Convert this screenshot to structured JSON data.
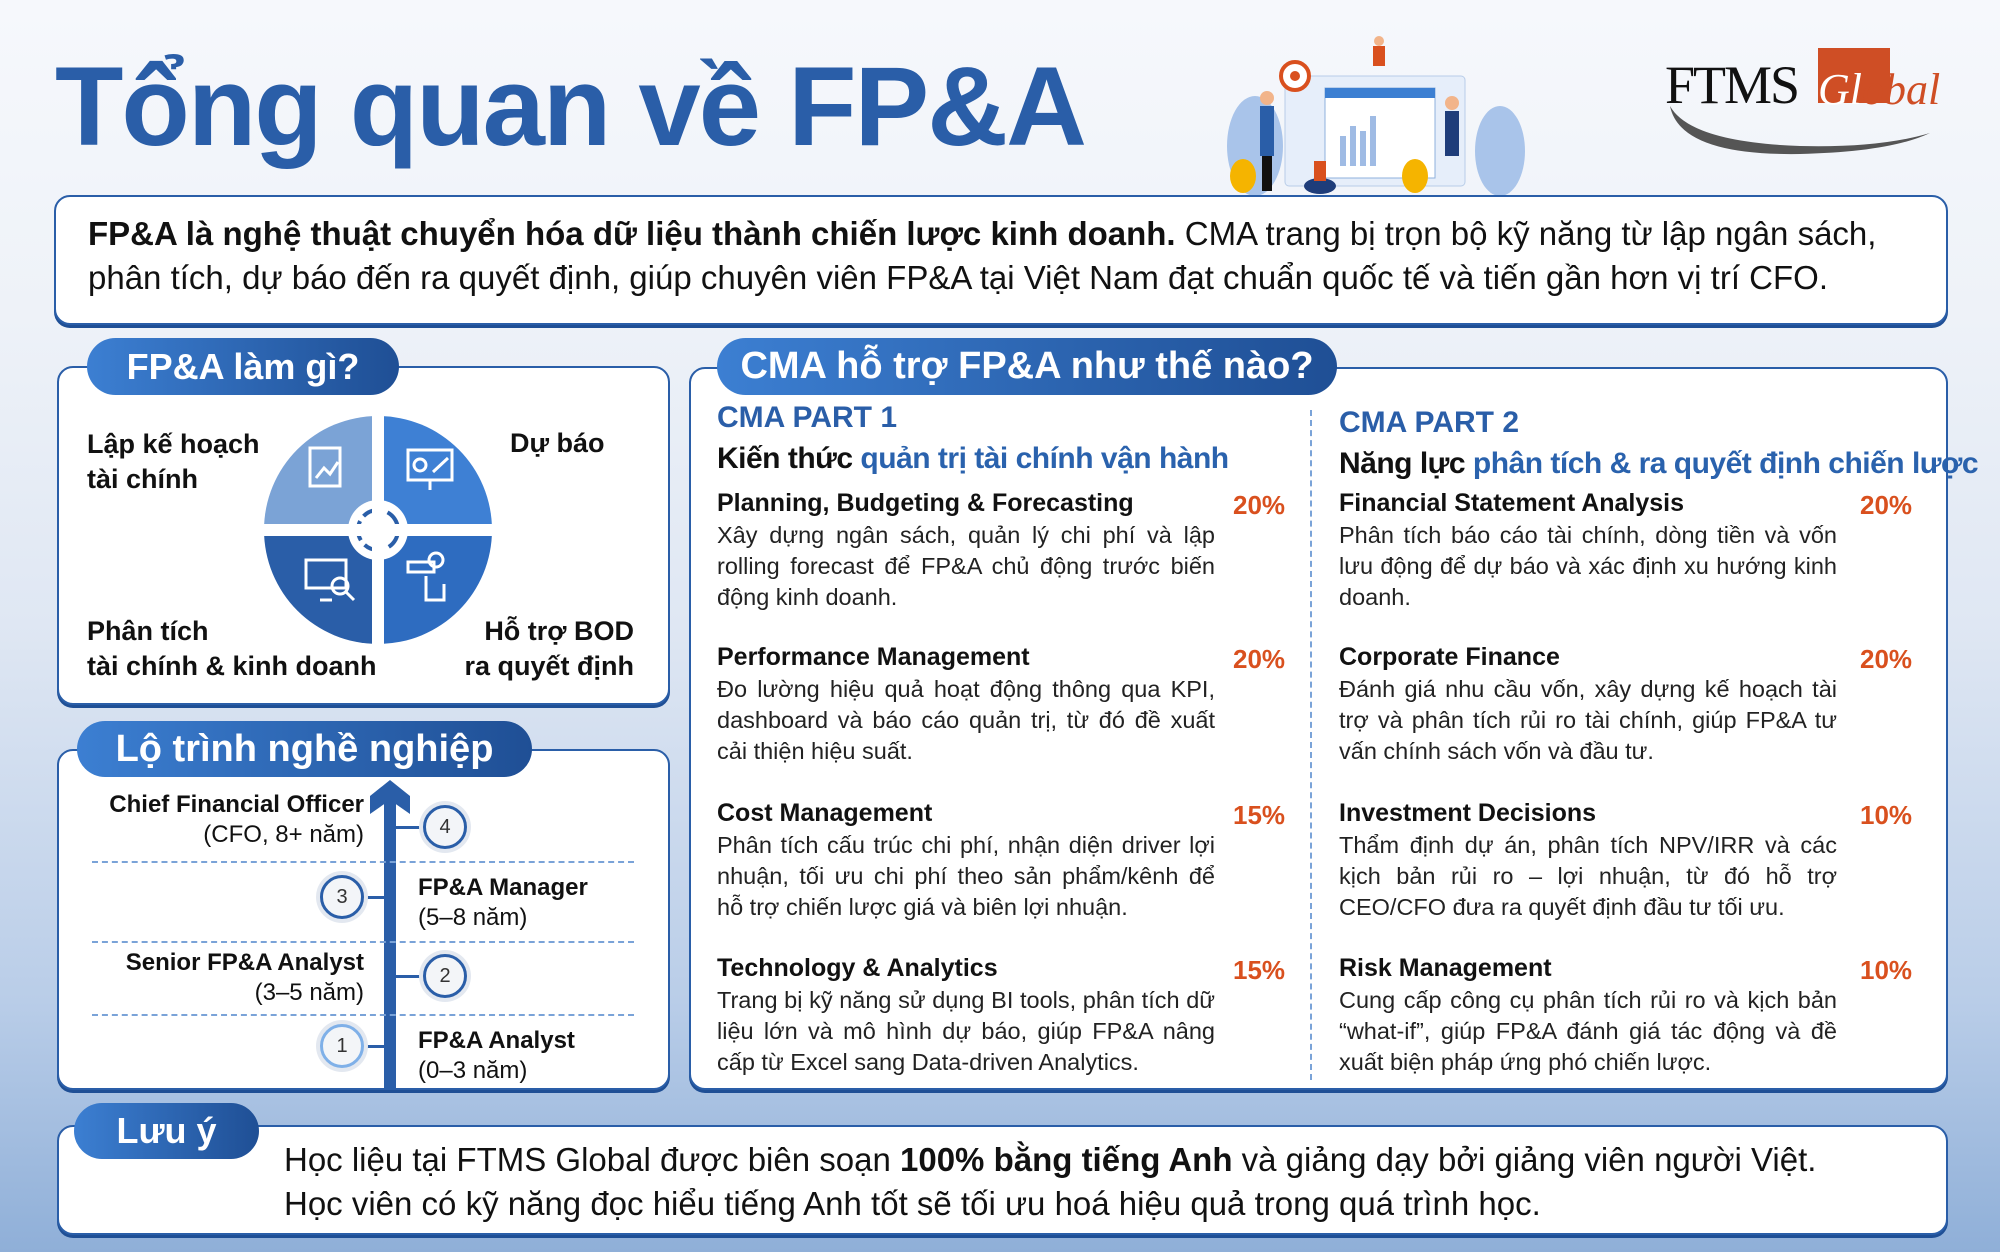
{
  "header": {
    "title": "Tổng quan về FP&A",
    "logo": {
      "brand": "FTMS",
      "suffix": "Global"
    }
  },
  "intro": {
    "bold": "FP&A là nghệ thuật chuyển hóa dữ liệu thành chiến lược kinh doanh.",
    "text": " CMA trang bị trọn bộ kỹ năng từ lập ngân sách, phân tích, dự báo đến ra quyết định, giúp chuyên viên FP&A tại Việt Nam đạt chuẩn quốc tế và tiến gần hơn vị trí CFO."
  },
  "what": {
    "title": "FP&A làm gì?",
    "quadrants": [
      {
        "line1": "Lập kế hoạch",
        "line2": "tài chính",
        "icon": "financial-plan-icon"
      },
      {
        "line1": "Dự báo",
        "line2": "",
        "icon": "forecast-presentation-icon"
      },
      {
        "line1": "Phân tích",
        "line2": "tài chính  & kinh doanh",
        "icon": "analytics-monitor-icon"
      },
      {
        "line1": "Hỗ trợ BOD",
        "line2": "ra quyết định",
        "icon": "decision-click-icon"
      }
    ]
  },
  "career": {
    "title": "Lộ trình nghề nghiệp",
    "steps": [
      {
        "num": "1",
        "role": "FP&A Analyst",
        "years": "(0–3 năm)"
      },
      {
        "num": "2",
        "role": "Senior FP&A Analyst",
        "years": "(3–5 năm)"
      },
      {
        "num": "3",
        "role": "FP&A Manager",
        "years": "(5–8 năm)"
      },
      {
        "num": "4",
        "role": "Chief Financial Officer",
        "years": "(CFO, 8+ năm)"
      }
    ]
  },
  "cma": {
    "title": "CMA hỗ trợ FP&A như thế nào?",
    "parts": [
      {
        "label": "CMA PART 1",
        "sub_plain": "Kiến thức ",
        "sub_highlight": "quản trị tài chính vận hành",
        "items": [
          {
            "title": "Planning, Budgeting & Forecasting",
            "pct": "20%",
            "body": "Xây dựng ngân sách, quản lý chi phí và lập rolling forecast để FP&A chủ động trước biến động kinh doanh."
          },
          {
            "title": "Performance Management",
            "pct": "20%",
            "body": "Đo lường hiệu quả hoạt động thông qua KPI, dashboard và báo cáo quản trị, từ đó đề xuất cải thiện hiệu suất."
          },
          {
            "title": "Cost Management",
            "pct": "15%",
            "body": "Phân tích cấu trúc chi phí, nhận diện driver lợi nhuận, tối ưu chi phí theo sản phẩm/kênh để hỗ trợ chiến lược giá và biên lợi nhuận."
          },
          {
            "title": "Technology & Analytics",
            "pct": "15%",
            "body": "Trang bị kỹ năng sử dụng BI tools, phân tích dữ liệu lớn và mô hình dự báo, giúp FP&A nâng cấp từ Excel sang Data-driven Analytics."
          }
        ]
      },
      {
        "label": "CMA PART 2",
        "sub_plain": "Năng lực ",
        "sub_highlight": "phân tích & ra quyết định chiến lược",
        "items": [
          {
            "title": "Financial Statement Analysis",
            "pct": "20%",
            "body": "Phân tích báo cáo tài chính, dòng tiền và vốn lưu động để dự báo và xác định xu hướng kinh doanh."
          },
          {
            "title": "Corporate Finance",
            "pct": "20%",
            "body": "Đánh giá nhu cầu vốn, xây dựng kế hoạch tài trợ và phân tích rủi ro tài chính, giúp FP&A tư vấn chính sách vốn và đầu tư."
          },
          {
            "title": "Investment Decisions",
            "pct": "10%",
            "body": "Thẩm định dự án, phân tích NPV/IRR và các kịch bản rủi ro – lợi nhuận, từ đó hỗ trợ CEO/CFO đưa ra quyết định đầu tư tối ưu."
          },
          {
            "title": "Risk Management",
            "pct": "10%",
            "body": "Cung cấp công cụ phân tích rủi ro và kịch bản “what-if”, giúp FP&A đánh giá tác động và đề xuất biện pháp ứng phó chiến lược."
          }
        ]
      }
    ]
  },
  "note": {
    "title": "Lưu ý",
    "line1_a": "Học liệu tại FTMS Global được biên soạn ",
    "line1_bold": "100% bằng tiếng Anh",
    "line1_b": " và giảng dạy bởi giảng viên người Việt.",
    "line2": "Học viên có kỹ năng đọc hiểu tiếng Anh tốt sẽ tối ưu hoá hiệu quả trong quá trình học."
  },
  "colors": {
    "primary": "#2a5ea8",
    "accent": "#d9501e"
  }
}
